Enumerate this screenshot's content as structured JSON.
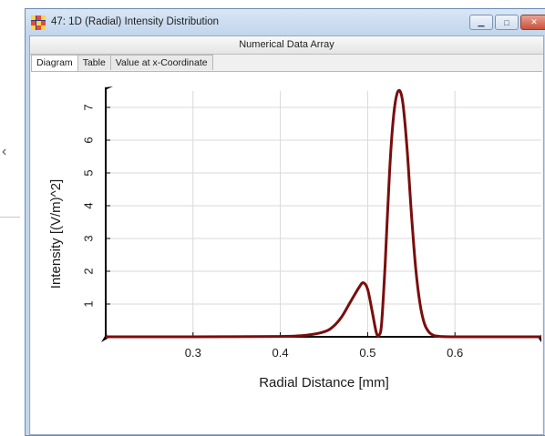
{
  "window": {
    "title": "47: 1D (Radial) Intensity Distribution",
    "subtitle": "Numerical Data Array"
  },
  "tabs": [
    {
      "label": "Diagram",
      "active": true
    },
    {
      "label": "Table",
      "active": false
    },
    {
      "label": "Value at x-Coordinate",
      "active": false
    }
  ],
  "controls": {
    "minimize_icon": "minimize-icon",
    "maximize_icon": "maximize-icon",
    "close_icon": "close-icon"
  },
  "colors": {
    "curve": "#7a0d0d",
    "grid": "#d8d8d8",
    "close_button": "#c7513b"
  },
  "chart_data": {
    "type": "line",
    "title": "",
    "xlabel": "Radial Distance [mm]",
    "ylabel": "Intensity [(V/m)^2]",
    "xlim": [
      0.2,
      0.7
    ],
    "ylim": [
      0,
      7.5
    ],
    "x_ticks": [
      0.3,
      0.4,
      0.5,
      0.6
    ],
    "x_tick_labels": [
      "0.3",
      "0.4",
      "0.5",
      "0.6"
    ],
    "y_ticks": [
      1,
      2,
      3,
      4,
      5,
      6,
      7
    ],
    "y_tick_labels": [
      "1",
      "2",
      "3",
      "4",
      "5",
      "6",
      "7"
    ],
    "grid": true,
    "series": [
      {
        "x": [
          0.2,
          0.3,
          0.4,
          0.43,
          0.45,
          0.46,
          0.47,
          0.48,
          0.49,
          0.495,
          0.5,
          0.505,
          0.51,
          0.513,
          0.516,
          0.52,
          0.525,
          0.53,
          0.535,
          0.54,
          0.545,
          0.55,
          0.555,
          0.56,
          0.565,
          0.57,
          0.575,
          0.58,
          0.6,
          0.7
        ],
        "y": [
          0,
          0,
          0.01,
          0.05,
          0.15,
          0.3,
          0.6,
          1.05,
          1.5,
          1.65,
          1.45,
          0.8,
          0.12,
          0.05,
          0.4,
          2.2,
          5.0,
          6.8,
          7.5,
          7.2,
          5.8,
          3.8,
          2.1,
          1.0,
          0.4,
          0.15,
          0.05,
          0.02,
          0,
          0
        ]
      }
    ]
  }
}
